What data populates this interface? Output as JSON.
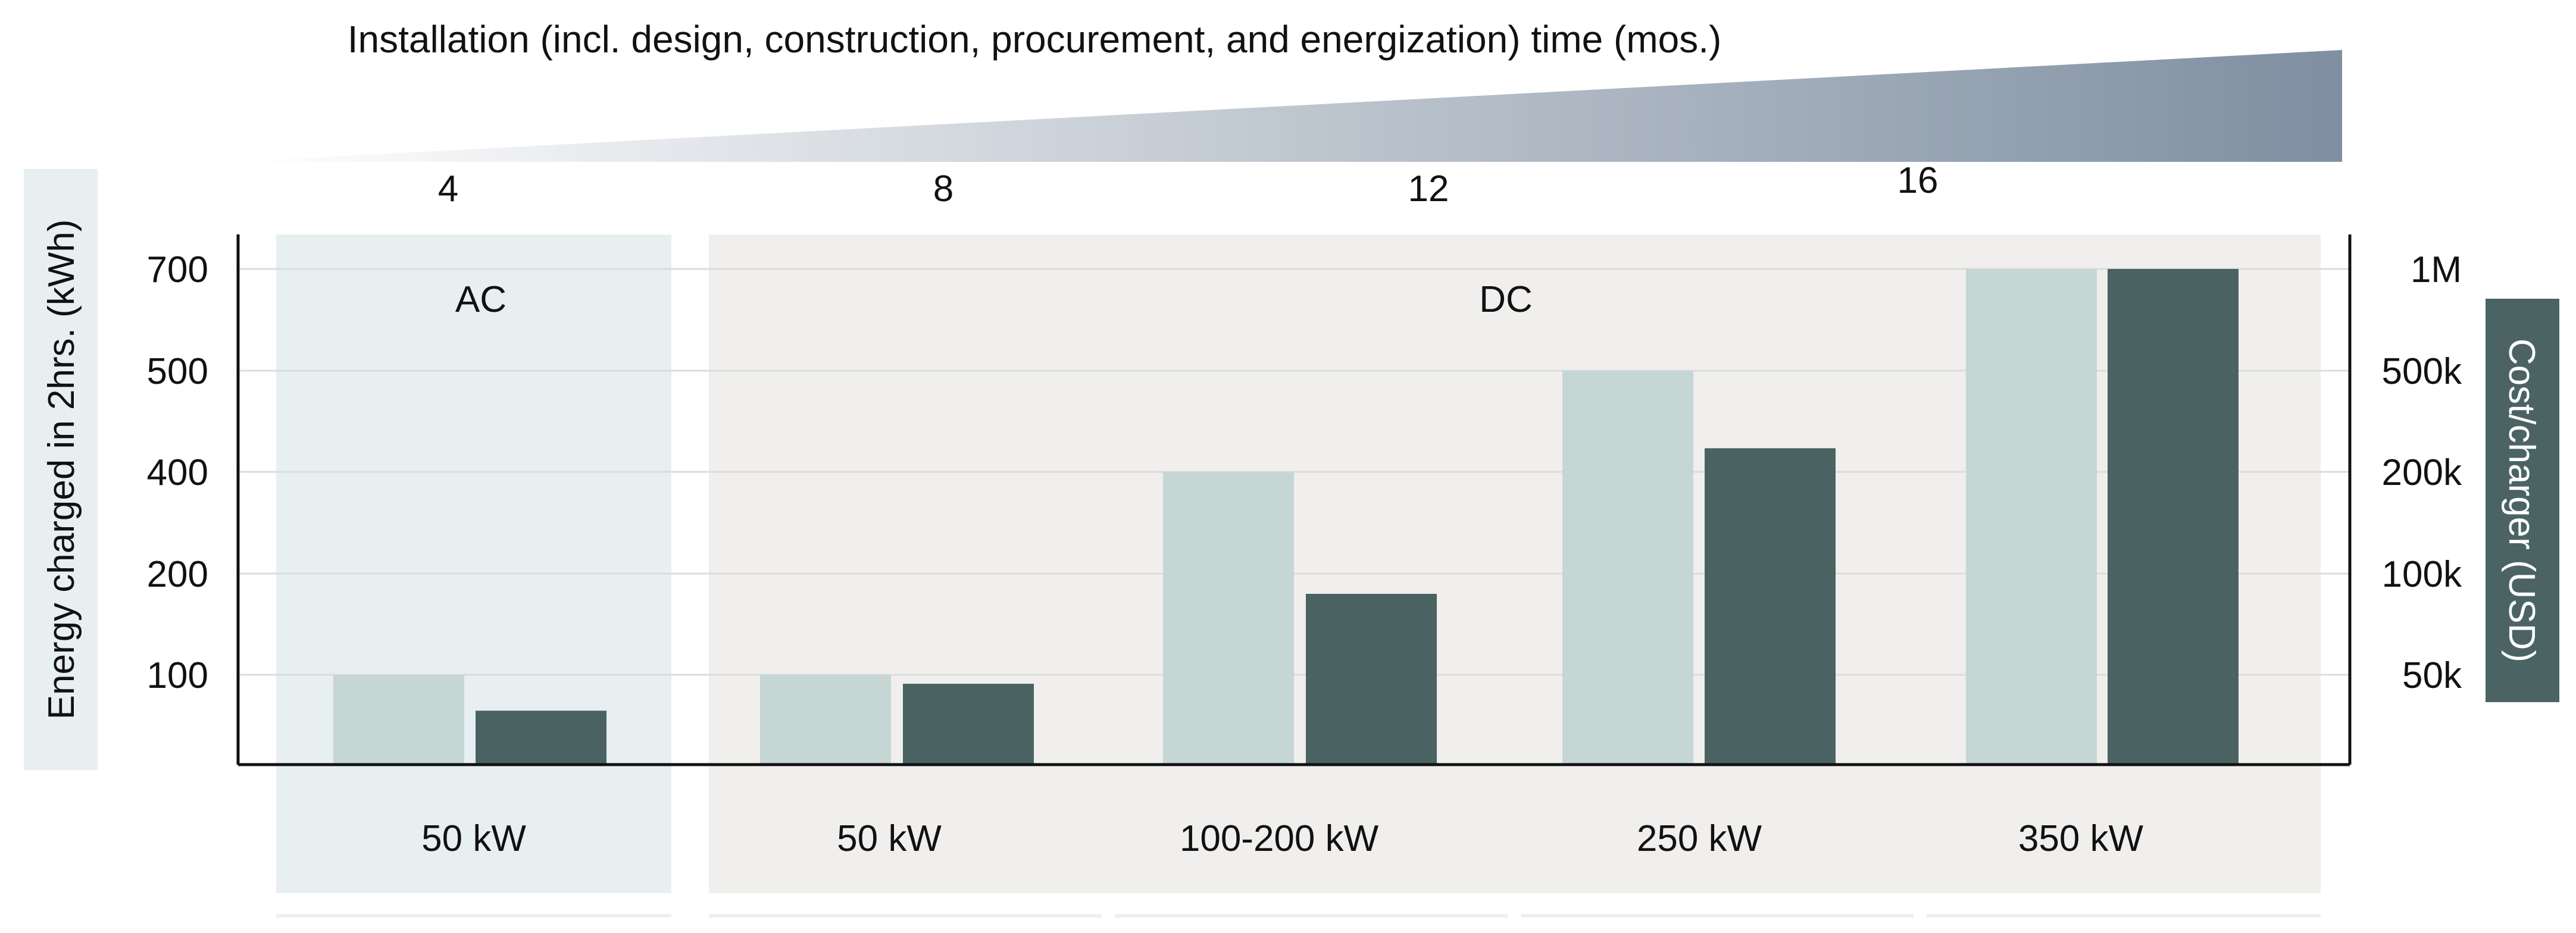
{
  "chart_data": {
    "type": "bar",
    "title": "Installation (incl. design, construction, procurement, and energization) time (mos.)",
    "time_ticks": [
      "4",
      "8",
      "12",
      "16"
    ],
    "ylabel_left": "Energy charged in 2hrs. (kWh)",
    "ylabel_right": "Cost/charger (USD)",
    "yticks_left": [
      "700",
      "500",
      "400",
      "200",
      "100"
    ],
    "yticks_right": [
      "1M",
      "500k",
      "200k",
      "100k",
      "50k"
    ],
    "groups": [
      {
        "name": "AC",
        "categories": [
          "50 kW"
        ]
      },
      {
        "name": "DC",
        "categories": [
          "50 kW",
          "100-200 kW",
          "250 kW",
          "350 kW"
        ]
      }
    ],
    "categories": [
      "50 kW",
      "50 kW",
      "100-200 kW",
      "250 kW",
      "350 kW"
    ],
    "series": [
      {
        "name": "Energy charged in 2hrs. (kWh)",
        "values": [
          100,
          100,
          400,
          500,
          700
        ]
      },
      {
        "name": "Cost/charger (USD)",
        "values": [
          30000,
          45000,
          90000,
          270000,
          1000000
        ]
      }
    ],
    "colors": {
      "energy": "#c5d6d5",
      "cost": "#4a6262",
      "ac_panel": "#e8eff1",
      "dc_panel": "#f0efed",
      "gridline": "#dcdcdc",
      "axis": "#111111",
      "right_label_bg": "#4b6363",
      "left_label_bg": "#e7eff1",
      "wedge_light": "#ffffff",
      "wedge_dark": "#7f8fa1"
    }
  }
}
